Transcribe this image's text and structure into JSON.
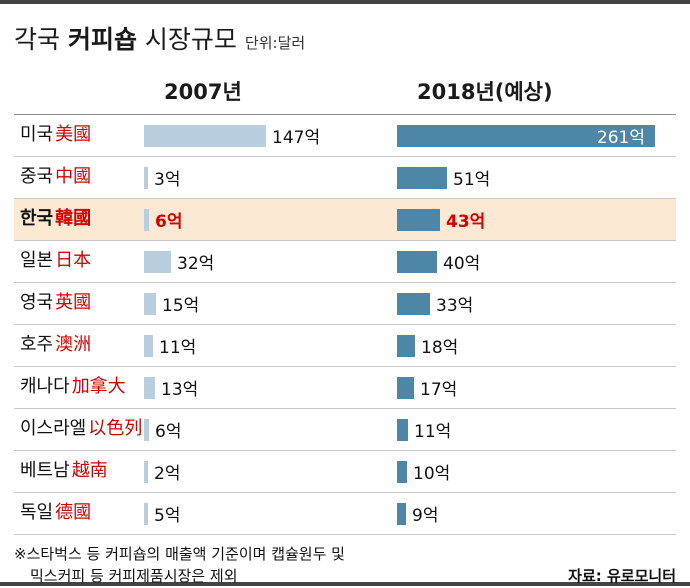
{
  "header": {
    "title_prefix": "각국 ",
    "title_bold": "커피숍",
    "title_suffix": " 시장규모",
    "unit_label": "단위:달러"
  },
  "columns": {
    "col_2007": "2007년",
    "col_2018": "2018년(예상)"
  },
  "chart_data": {
    "type": "bar",
    "title": "각국 커피숍 시장규모",
    "unit": "억 달러",
    "categories": [
      "미국",
      "중국",
      "한국",
      "일본",
      "영국",
      "호주",
      "캐나다",
      "이스라엘",
      "베트남",
      "독일"
    ],
    "categories_hanja": [
      "美國",
      "中國",
      "韓國",
      "日本",
      "英國",
      "澳洲",
      "加拿大",
      "以色列",
      "越南",
      "德國"
    ],
    "series": [
      {
        "name": "2007년",
        "values": [
          147,
          3,
          6,
          32,
          15,
          11,
          13,
          6,
          2,
          5
        ]
      },
      {
        "name": "2018년(예상)",
        "values": [
          261,
          51,
          43,
          40,
          33,
          18,
          17,
          11,
          10,
          9
        ]
      }
    ],
    "highlight_category": "한국",
    "legend_position": "top",
    "grid": false
  },
  "rows": [
    {
      "name": "미국",
      "hanja": "美國",
      "v2007": 147,
      "label2007": "147억",
      "v2018": 261,
      "label2018": "261억",
      "highlight": false,
      "value_inside": true
    },
    {
      "name": "중국",
      "hanja": "中國",
      "v2007": 3,
      "label2007": "3억",
      "v2018": 51,
      "label2018": "51억",
      "highlight": false,
      "value_inside": false
    },
    {
      "name": "한국",
      "hanja": "韓國",
      "v2007": 6,
      "label2007": "6억",
      "v2018": 43,
      "label2018": "43억",
      "highlight": true,
      "value_inside": false
    },
    {
      "name": "일본",
      "hanja": "日本",
      "v2007": 32,
      "label2007": "32억",
      "v2018": 40,
      "label2018": "40억",
      "highlight": false,
      "value_inside": false
    },
    {
      "name": "영국",
      "hanja": "英國",
      "v2007": 15,
      "label2007": "15억",
      "v2018": 33,
      "label2018": "33억",
      "highlight": false,
      "value_inside": false
    },
    {
      "name": "호주",
      "hanja": "澳洲",
      "v2007": 11,
      "label2007": "11억",
      "v2018": 18,
      "label2018": "18억",
      "highlight": false,
      "value_inside": false
    },
    {
      "name": "캐나다",
      "hanja": "加拿大",
      "v2007": 13,
      "label2007": "13억",
      "v2018": 17,
      "label2018": "17억",
      "highlight": false,
      "value_inside": false
    },
    {
      "name": "이스라엘",
      "hanja": "以色列",
      "v2007": 6,
      "label2007": "6억",
      "v2018": 11,
      "label2018": "11억",
      "highlight": false,
      "value_inside": false
    },
    {
      "name": "베트남",
      "hanja": "越南",
      "v2007": 2,
      "label2007": "2억",
      "v2018": 10,
      "label2018": "10억",
      "highlight": false,
      "value_inside": false
    },
    {
      "name": "독일",
      "hanja": "德國",
      "v2007": 5,
      "label2007": "5억",
      "v2018": 9,
      "label2018": "9억",
      "highlight": false,
      "value_inside": false
    }
  ],
  "footer": {
    "note_line1": "※스타벅스 등 커피숍의 매출액 기준이며 캡슐원두 및",
    "note_line2": "믹스커피 등 커피제품시장은 제외",
    "source": "자료: 유로모니터"
  },
  "colors": {
    "bar_2007": "#b8cede",
    "bar_2018": "#4e86a8",
    "highlight_bg": "#fbe9d3",
    "accent_red": "#d40000"
  }
}
